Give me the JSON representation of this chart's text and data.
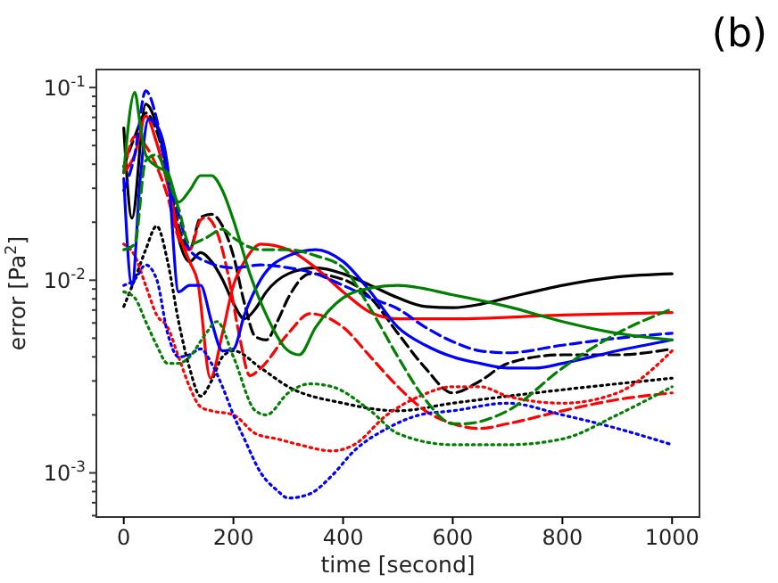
{
  "chart_data": {
    "type": "line",
    "title": "(b)",
    "xlabel": "time [second]",
    "ylabel": "error [Pa$^{2}$]",
    "log": "y",
    "xlim": [
      -50,
      1050
    ],
    "xticks": [
      0,
      200,
      400,
      600,
      800,
      1000
    ],
    "ylim": [
      0.00059,
      0.124
    ],
    "yticks": [
      {
        "value": 0.0006,
        "label": null
      },
      {
        "value": 0.0007,
        "label": null
      },
      {
        "value": 0.0008,
        "label": null
      },
      {
        "value": 0.0009,
        "label": null
      },
      {
        "value": 0.001,
        "label": "10$^{-3}$"
      },
      {
        "value": 0.002,
        "label": null
      },
      {
        "value": 0.003,
        "label": null
      },
      {
        "value": 0.004,
        "label": null
      },
      {
        "value": 0.005,
        "label": null
      },
      {
        "value": 0.006,
        "label": null
      },
      {
        "value": 0.007,
        "label": null
      },
      {
        "value": 0.008,
        "label": null
      },
      {
        "value": 0.009,
        "label": null
      },
      {
        "value": 0.01,
        "label": "10$^{-2}$"
      },
      {
        "value": 0.02,
        "label": null
      },
      {
        "value": 0.03,
        "label": null
      },
      {
        "value": 0.04,
        "label": null
      },
      {
        "value": 0.05,
        "label": null
      },
      {
        "value": 0.06,
        "label": null
      },
      {
        "value": 0.07,
        "label": null
      },
      {
        "value": 0.08,
        "label": null
      },
      {
        "value": 0.09,
        "label": null
      },
      {
        "value": 0.1,
        "label": "10$^{-1}$"
      }
    ],
    "series": [
      {
        "color": "#000000",
        "line_style": "solid",
        "x": [
          0,
          15,
          40,
          60,
          80,
          100,
          120,
          140,
          160,
          180,
          200,
          220,
          240,
          260,
          300,
          350,
          400,
          450,
          500,
          550,
          600,
          650,
          700,
          800,
          900,
          1000
        ],
        "values": [
          0.0617,
          0.021,
          0.082,
          0.064,
          0.0362,
          0.0166,
          0.0125,
          0.0139,
          0.0125,
          0.0101,
          0.0076,
          0.0063,
          0.0071,
          0.0087,
          0.0108,
          0.0116,
          0.0108,
          0.0094,
          0.0081,
          0.0073,
          0.0072,
          0.0075,
          0.0081,
          0.0094,
          0.0104,
          0.0108
        ]
      },
      {
        "color": "#000000",
        "line_style": "dashed",
        "x": [
          0,
          20,
          40,
          60,
          80,
          100,
          120,
          140,
          160,
          180,
          200,
          220,
          240,
          260,
          280,
          300,
          340,
          400,
          450,
          500,
          550,
          600,
          650,
          700,
          800,
          900,
          1000
        ],
        "values": [
          0.0389,
          0.0555,
          0.0737,
          0.0595,
          0.0362,
          0.0191,
          0.0144,
          0.0212,
          0.022,
          0.0191,
          0.0134,
          0.0076,
          0.0051,
          0.0049,
          0.0061,
          0.0081,
          0.0108,
          0.0101,
          0.0081,
          0.0053,
          0.0035,
          0.0026,
          0.003,
          0.0037,
          0.0041,
          0.0041,
          0.0044
        ]
      },
      {
        "color": "#000000",
        "line_style": "dotted",
        "x": [
          0,
          20,
          40,
          60,
          80,
          100,
          120,
          140,
          160,
          180,
          200,
          250,
          300,
          400,
          500,
          600,
          700,
          800,
          900,
          1000
        ],
        "values": [
          0.0073,
          0.0101,
          0.0144,
          0.0191,
          0.0125,
          0.0061,
          0.0035,
          0.0025,
          0.003,
          0.004,
          0.0043,
          0.0035,
          0.0028,
          0.0023,
          0.0021,
          0.0023,
          0.0025,
          0.0027,
          0.0029,
          0.0031
        ]
      },
      {
        "color": "#ff0000",
        "line_style": "solid",
        "x": [
          0,
          20,
          40,
          60,
          80,
          100,
          120,
          135,
          158,
          180,
          200,
          220,
          250,
          300,
          350,
          400,
          450,
          500,
          600,
          800,
          1000
        ],
        "values": [
          0.0362,
          0.0448,
          0.0711,
          0.0516,
          0.0314,
          0.0178,
          0.0125,
          0.0098,
          0.0031,
          0.0053,
          0.0094,
          0.0125,
          0.0154,
          0.0144,
          0.0116,
          0.0087,
          0.0068,
          0.0063,
          0.0063,
          0.0066,
          0.0068
        ]
      },
      {
        "color": "#ff0000",
        "line_style": "dashed",
        "x": [
          0,
          20,
          40,
          60,
          80,
          100,
          120,
          140,
          150,
          170,
          190,
          210,
          230,
          250,
          300,
          340,
          400,
          450,
          500,
          550,
          600,
          650,
          700,
          800,
          900,
          1000
        ],
        "values": [
          0.0362,
          0.0555,
          0.0499,
          0.0389,
          0.0272,
          0.0166,
          0.0144,
          0.0205,
          0.0212,
          0.0178,
          0.0108,
          0.0053,
          0.0032,
          0.0035,
          0.0053,
          0.0067,
          0.0057,
          0.004,
          0.0028,
          0.0021,
          0.0018,
          0.0017,
          0.0018,
          0.0021,
          0.0024,
          0.0026
        ]
      },
      {
        "color": "#ff0000",
        "line_style": "dotted",
        "x": [
          0,
          20,
          40,
          60,
          80,
          100,
          120,
          140,
          160,
          200,
          240,
          280,
          320,
          380,
          420,
          480,
          540,
          600,
          650,
          700,
          800,
          900,
          1000
        ],
        "values": [
          0.0154,
          0.0134,
          0.0094,
          0.0066,
          0.0057,
          0.004,
          0.0028,
          0.0022,
          0.0021,
          0.002,
          0.0016,
          0.0015,
          0.0014,
          0.0013,
          0.0014,
          0.002,
          0.0025,
          0.0028,
          0.0028,
          0.0025,
          0.0023,
          0.0026,
          0.0043
        ]
      },
      {
        "color": "#0000ff",
        "line_style": "solid",
        "x": [
          0,
          15,
          30,
          45,
          60,
          80,
          100,
          120,
          140,
          160,
          180,
          200,
          220,
          250,
          300,
          350,
          400,
          450,
          500,
          550,
          600,
          650,
          700,
          750,
          800,
          900,
          1000
        ],
        "values": [
          0.0337,
          0.0094,
          0.0337,
          0.0686,
          0.064,
          0.0389,
          0.0087,
          0.0094,
          0.0094,
          0.0061,
          0.0043,
          0.0044,
          0.0066,
          0.0101,
          0.0134,
          0.0144,
          0.0125,
          0.0087,
          0.0057,
          0.0046,
          0.004,
          0.0037,
          0.0035,
          0.0035,
          0.0037,
          0.0043,
          0.0049
        ]
      },
      {
        "color": "#0000ff",
        "line_style": "dashed",
        "x": [
          0,
          20,
          40,
          60,
          80,
          100,
          120,
          150,
          200,
          250,
          300,
          350,
          400,
          450,
          500,
          550,
          600,
          650,
          700,
          800,
          900,
          1000
        ],
        "values": [
          0.0292,
          0.0448,
          0.0962,
          0.0686,
          0.0337,
          0.022,
          0.0144,
          0.0125,
          0.0116,
          0.012,
          0.0116,
          0.0108,
          0.0094,
          0.0081,
          0.0071,
          0.0057,
          0.0048,
          0.0043,
          0.0042,
          0.0046,
          0.005,
          0.0053
        ]
      },
      {
        "color": "#0000ff",
        "line_style": "dotted",
        "x": [
          0,
          20,
          40,
          60,
          80,
          100,
          120,
          140,
          160,
          180,
          200,
          220,
          250,
          280,
          300,
          340,
          380,
          420,
          480,
          540,
          600,
          700,
          800,
          900,
          1000
        ],
        "values": [
          0.0094,
          0.0101,
          0.012,
          0.0101,
          0.0053,
          0.004,
          0.0041,
          0.0044,
          0.0037,
          0.0028,
          0.002,
          0.0015,
          0.001,
          0.00081,
          0.00074,
          0.00078,
          0.00097,
          0.0013,
          0.0017,
          0.002,
          0.0021,
          0.0023,
          0.002,
          0.0017,
          0.0014
        ]
      },
      {
        "color": "#008000",
        "line_style": "solid",
        "x": [
          0,
          20,
          30,
          40,
          60,
          80,
          100,
          120,
          140,
          160,
          180,
          200,
          230,
          260,
          300,
          320,
          350,
          400,
          450,
          500,
          600,
          700,
          800,
          900,
          1000
        ],
        "values": [
          0.0362,
          0.0945,
          0.064,
          0.0448,
          0.0389,
          0.0362,
          0.0254,
          0.0292,
          0.0349,
          0.0349,
          0.0292,
          0.0205,
          0.0108,
          0.0066,
          0.0043,
          0.0041,
          0.0057,
          0.0081,
          0.0091,
          0.0094,
          0.0084,
          0.0073,
          0.0061,
          0.0053,
          0.0049
        ]
      },
      {
        "color": "#008000",
        "line_style": "dashed",
        "x": [
          0,
          20,
          40,
          60,
          80,
          100,
          120,
          150,
          180,
          200,
          250,
          300,
          350,
          400,
          450,
          500,
          550,
          600,
          620,
          700,
          800,
          900,
          1000
        ],
        "values": [
          0.0144,
          0.0154,
          0.0417,
          0.0448,
          0.0337,
          0.0236,
          0.0154,
          0.0166,
          0.0184,
          0.0166,
          0.0144,
          0.0144,
          0.0134,
          0.0116,
          0.0071,
          0.004,
          0.0024,
          0.0018,
          0.0018,
          0.0021,
          0.0035,
          0.0053,
          0.0071
        ]
      },
      {
        "color": "#008000",
        "line_style": "dotted",
        "x": [
          0,
          20,
          40,
          60,
          80,
          100,
          120,
          150,
          170,
          200,
          240,
          260,
          300,
          340,
          380,
          450,
          500,
          600,
          700,
          800,
          900,
          1000
        ],
        "values": [
          0.0087,
          0.0081,
          0.0061,
          0.0046,
          0.0037,
          0.0037,
          0.004,
          0.0053,
          0.0061,
          0.004,
          0.0021,
          0.002,
          0.0026,
          0.0029,
          0.0028,
          0.0021,
          0.0016,
          0.0014,
          0.0014,
          0.0015,
          0.002,
          0.0028
        ]
      }
    ]
  }
}
